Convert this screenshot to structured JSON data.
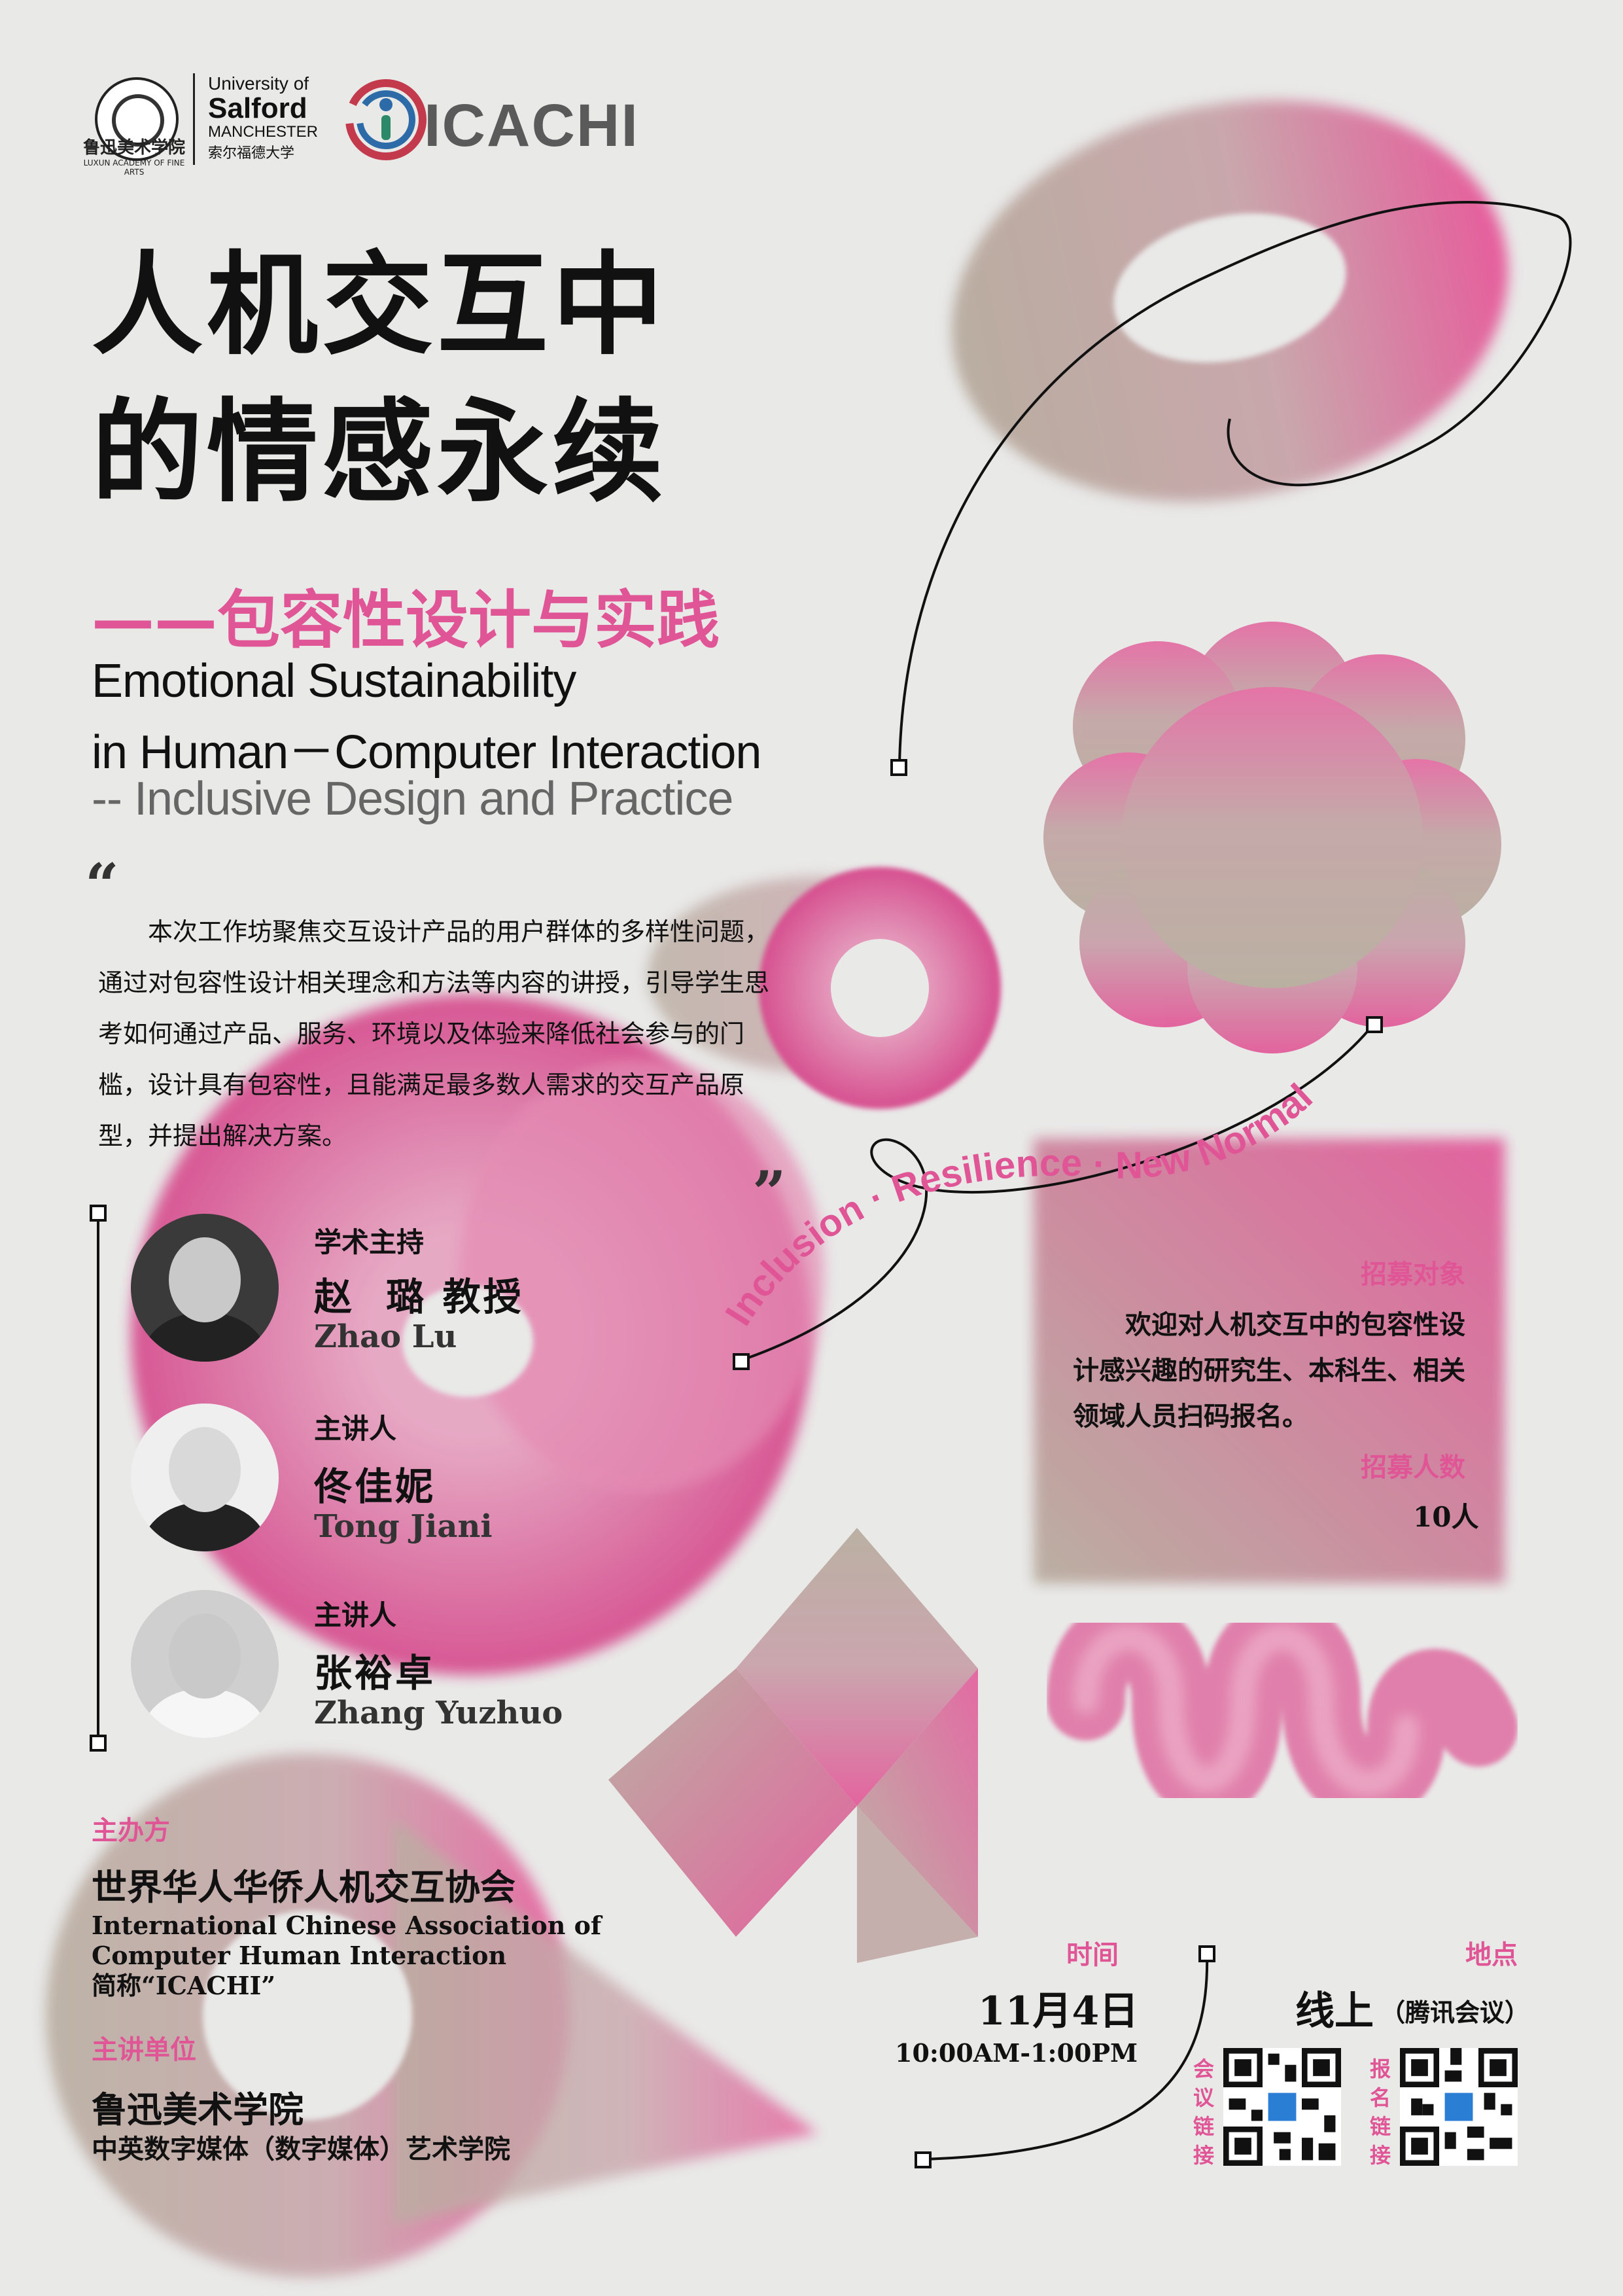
{
  "header": {
    "school_caption": "鲁迅美术学院",
    "school_caption_en": "LUXUN ACADEMY OF FINE ARTS",
    "salford": {
      "line1": "University of",
      "line2": "Salford",
      "line3": "MANCHESTER",
      "line4": "索尔福德大学"
    },
    "icachi_logo_text": "ICACHI"
  },
  "title": {
    "line1": "人机交互中",
    "line2": "的情感永续",
    "subtitle": "——包容性设计与实践",
    "en_line1": "Emotional Sustainability",
    "en_line2": "in Human－Computer Interaction",
    "en_sub": "-- Inclusive Design and Practice"
  },
  "intro": {
    "open_quote": "“",
    "close_quote": "”",
    "text": "本次工作坊聚焦交互设计产品的用户群体的多样性问题，通过对包容性设计相关理念和方法等内容的讲授，引导学生思考如何通过产品、服务、环境以及体验来降低社会参与的门槛，设计具有包容性，且能满足最多数人需求的交互产品原型，并提出解决方案。"
  },
  "ring_text": "Inclusion · Resilience · New Normal",
  "people": [
    {
      "role": "学术主持",
      "name": "赵  璐 教授",
      "name_en": "Zhao Lu"
    },
    {
      "role": "主讲人",
      "name": "佟佳妮",
      "name_en": "Tong Jiani"
    },
    {
      "role": "主讲人",
      "name": "张裕卓",
      "name_en": "Zhang Yuzhuo"
    }
  ],
  "organizer": {
    "label": "主办方",
    "name": "世界华人华侨人机交互协会",
    "name_en_1": "International Chinese Association of",
    "name_en_2": "Computer Human Interaction",
    "abbr": "简称“ICACHI”"
  },
  "host": {
    "label": "主讲单位",
    "name": "鲁迅美术学院",
    "sub": "中英数字媒体（数字媒体）艺术学院"
  },
  "recruit": {
    "target_label": "招募对象",
    "target_text": "欢迎对人机交互中的包容性设计感兴趣的研究生、本科生、相关领域人员扫码报名。",
    "count_label": "招募人数",
    "count": "10人"
  },
  "schedule": {
    "time_label": "时间",
    "date": "11月4日",
    "hours": "10:00AM-1:00PM",
    "place_label": "地点",
    "place": "线上",
    "place_note": "（腾讯会议）",
    "qr_meeting_label": "会议链接",
    "qr_signup_label": "报名链接"
  },
  "colors": {
    "accent": "#e05596",
    "taupe": "#b9ada0",
    "background": "#e9e9e8"
  }
}
